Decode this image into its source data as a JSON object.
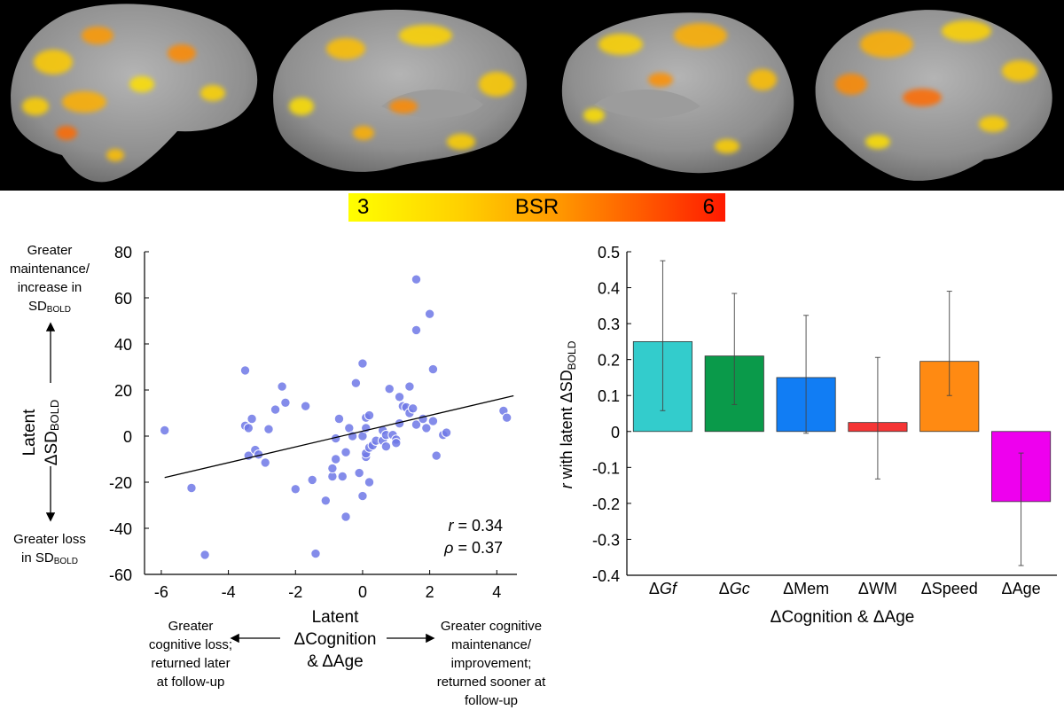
{
  "colorbar": {
    "label": "BSR",
    "min": "3",
    "max": "6"
  },
  "scatter_side": {
    "ylabel_line1": "Latent",
    "ylabel_line2": "ΔSD",
    "ylabel_sub": "BOLD",
    "top_note_line1": "Greater",
    "top_note_line2": "maintenance/",
    "top_note_line3": "increase in",
    "top_note_line4": "SD",
    "top_note_sub": "BOLD",
    "bottom_note_line1": "Greater loss",
    "bottom_note_line2": "in SD",
    "bottom_note_sub": "BOLD",
    "xlabel_line1": "Latent",
    "xlabel_line2": "ΔCognition",
    "xlabel_line3": "& ΔAge",
    "left_note": [
      "Greater",
      "cognitive loss;",
      "returned later",
      "at follow-up"
    ],
    "right_note": [
      "Greater cognitive",
      "maintenance/",
      "improvement;",
      "returned sooner at",
      "follow-up"
    ],
    "stat_r_symbol": "r",
    "stat_r_value": " = 0.34",
    "stat_rho_symbol": "ρ",
    "stat_rho_value": " = 0.37"
  },
  "bar_side": {
    "ylabel_prefix": "r",
    "ylabel_main": " with latent ΔSD",
    "ylabel_sub": "BOLD",
    "xlabel": "ΔCognition & ΔAge"
  },
  "chart_data": [
    {
      "type": "scatter",
      "xlim": [
        -6.5,
        4.6
      ],
      "ylim": [
        -60,
        80
      ],
      "xticks": [
        -6,
        -4,
        -2,
        0,
        2,
        4
      ],
      "yticks": [
        -60,
        -40,
        -20,
        0,
        20,
        40,
        60,
        80
      ],
      "x_tick_labels": [
        "-6",
        "-4",
        "-2",
        "0",
        "2",
        "4"
      ],
      "y_tick_labels": [
        "-60",
        "-40",
        "-20",
        "0",
        "20",
        "40",
        "60",
        "80"
      ],
      "grid": false,
      "point_color": "#6f78e6",
      "fit_line": {
        "x": [
          -5.9,
          4.5
        ],
        "y": [
          -18,
          17.5
        ]
      },
      "points": [
        {
          "x": -5.9,
          "y": 2.5
        },
        {
          "x": -5.1,
          "y": -22.5
        },
        {
          "x": -4.7,
          "y": -51.5
        },
        {
          "x": -3.5,
          "y": 28.5
        },
        {
          "x": -3.5,
          "y": 4.5
        },
        {
          "x": -3.4,
          "y": 3.5
        },
        {
          "x": -3.4,
          "y": -8.5
        },
        {
          "x": -3.3,
          "y": 7.5
        },
        {
          "x": -3.2,
          "y": -6
        },
        {
          "x": -3.1,
          "y": -8
        },
        {
          "x": -2.9,
          "y": -11.5
        },
        {
          "x": -2.8,
          "y": 3
        },
        {
          "x": -2.6,
          "y": 11.5
        },
        {
          "x": -2.4,
          "y": 21.5
        },
        {
          "x": -2.3,
          "y": 14.5
        },
        {
          "x": -2.0,
          "y": -23
        },
        {
          "x": -1.7,
          "y": 13
        },
        {
          "x": -1.5,
          "y": -19
        },
        {
          "x": -1.4,
          "y": -51
        },
        {
          "x": -1.1,
          "y": -28
        },
        {
          "x": -0.9,
          "y": -17.5
        },
        {
          "x": -0.9,
          "y": -14
        },
        {
          "x": -0.8,
          "y": -10
        },
        {
          "x": -0.8,
          "y": -1
        },
        {
          "x": -0.7,
          "y": 7.5
        },
        {
          "x": -0.6,
          "y": -17.5
        },
        {
          "x": -0.5,
          "y": -35
        },
        {
          "x": -0.5,
          "y": -7
        },
        {
          "x": -0.4,
          "y": 3.5
        },
        {
          "x": -0.3,
          "y": 0
        },
        {
          "x": -0.2,
          "y": 23
        },
        {
          "x": -0.1,
          "y": -16
        },
        {
          "x": 0.0,
          "y": -26
        },
        {
          "x": 0.0,
          "y": 31.5
        },
        {
          "x": 0.0,
          "y": 0
        },
        {
          "x": 0.1,
          "y": 3.5
        },
        {
          "x": 0.1,
          "y": -9
        },
        {
          "x": 0.1,
          "y": -7.5
        },
        {
          "x": 0.1,
          "y": 8
        },
        {
          "x": 0.2,
          "y": 9
        },
        {
          "x": 0.2,
          "y": -20
        },
        {
          "x": 0.2,
          "y": -5
        },
        {
          "x": 0.3,
          "y": -4
        },
        {
          "x": 0.4,
          "y": -2
        },
        {
          "x": 0.6,
          "y": -2
        },
        {
          "x": 0.6,
          "y": 2.5
        },
        {
          "x": 0.7,
          "y": -4.5
        },
        {
          "x": 0.7,
          "y": 0.5
        },
        {
          "x": 0.8,
          "y": 20.5
        },
        {
          "x": 0.9,
          "y": 0.5
        },
        {
          "x": 1.0,
          "y": -1.5
        },
        {
          "x": 1.0,
          "y": -3
        },
        {
          "x": 1.1,
          "y": 17
        },
        {
          "x": 1.1,
          "y": 5.5
        },
        {
          "x": 1.2,
          "y": 13
        },
        {
          "x": 1.3,
          "y": 12.5
        },
        {
          "x": 1.4,
          "y": 21.5
        },
        {
          "x": 1.4,
          "y": 10
        },
        {
          "x": 1.5,
          "y": 12
        },
        {
          "x": 1.6,
          "y": 5
        },
        {
          "x": 1.6,
          "y": 46
        },
        {
          "x": 1.6,
          "y": 68
        },
        {
          "x": 1.8,
          "y": 7.5
        },
        {
          "x": 1.9,
          "y": 3.5
        },
        {
          "x": 2.0,
          "y": 53
        },
        {
          "x": 2.1,
          "y": 29
        },
        {
          "x": 2.1,
          "y": 6.5
        },
        {
          "x": 2.2,
          "y": -8.5
        },
        {
          "x": 2.4,
          "y": 0.5
        },
        {
          "x": 2.5,
          "y": 1.5
        },
        {
          "x": 4.2,
          "y": 11
        },
        {
          "x": 4.3,
          "y": 8
        }
      ]
    },
    {
      "type": "bar",
      "categories": [
        "ΔGf",
        "ΔGc",
        "ΔMem",
        "ΔWM",
        "ΔSpeed",
        "ΔAge"
      ],
      "category_prefix": [
        "Δ",
        "Δ",
        "Δ",
        "Δ",
        "Δ",
        "Δ"
      ],
      "category_name": [
        "Gf",
        "Gc",
        "Mem",
        "WM",
        "Speed",
        "Age"
      ],
      "category_italic": [
        true,
        true,
        false,
        false,
        false,
        false
      ],
      "values": [
        0.25,
        0.21,
        0.15,
        0.025,
        0.195,
        -0.195
      ],
      "error_low": [
        0.058,
        0.075,
        -0.005,
        -0.132,
        0.1,
        -0.373
      ],
      "error_high": [
        0.475,
        0.384,
        0.323,
        0.206,
        0.39,
        -0.06
      ],
      "colors": [
        "#33cccc",
        "#0a9a4a",
        "#117df4",
        "#f53535",
        "#ff8a12",
        "#ee00ee"
      ],
      "ylim": [
        -0.4,
        0.5
      ],
      "yticks": [
        -0.4,
        -0.3,
        -0.2,
        -0.1,
        0,
        0.1,
        0.2,
        0.3,
        0.4,
        0.5
      ],
      "y_tick_labels": [
        "-0.4",
        "-0.3",
        "-0.2",
        "-0.1",
        "0",
        "0.1",
        "0.2",
        "0.3",
        "0.4",
        "0.5"
      ],
      "grid": false
    }
  ]
}
